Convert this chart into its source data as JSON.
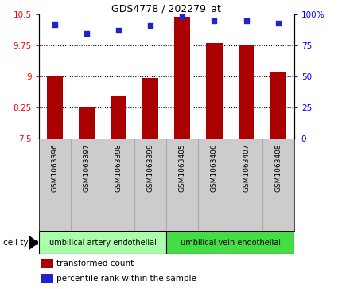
{
  "title": "GDS4778 / 202279_at",
  "samples": [
    "GSM1063396",
    "GSM1063397",
    "GSM1063398",
    "GSM1063399",
    "GSM1063405",
    "GSM1063406",
    "GSM1063407",
    "GSM1063408"
  ],
  "bar_values": [
    9.0,
    8.25,
    8.55,
    8.97,
    10.45,
    9.82,
    9.75,
    9.12
  ],
  "scatter_values": [
    92,
    85,
    87,
    91,
    98,
    95,
    95,
    93
  ],
  "bar_color": "#aa0000",
  "scatter_color": "#2222cc",
  "ylim_left": [
    7.5,
    10.5
  ],
  "ylim_right": [
    0,
    100
  ],
  "yticks_left": [
    7.5,
    8.25,
    9.0,
    9.75,
    10.5
  ],
  "ytick_labels_left": [
    "7.5",
    "8.25",
    "9",
    "9.75",
    "10.5"
  ],
  "yticks_right": [
    0,
    25,
    50,
    75,
    100
  ],
  "ytick_labels_right": [
    "0",
    "25",
    "50",
    "75",
    "100%"
  ],
  "grid_values": [
    8.25,
    9.0,
    9.75
  ],
  "cell_type_groups": [
    {
      "label": "umbilical artery endothelial",
      "start": 0,
      "end": 4,
      "color": "#aaffaa"
    },
    {
      "label": "umbilical vein endothelial",
      "start": 4,
      "end": 8,
      "color": "#44dd44"
    }
  ],
  "cell_type_label": "cell type",
  "legend_items": [
    {
      "label": "transformed count",
      "color": "#aa0000"
    },
    {
      "label": "percentile rank within the sample",
      "color": "#2222cc"
    }
  ],
  "bar_width": 0.5,
  "bg_color": "#ffffff",
  "label_area_color": "#cccccc"
}
